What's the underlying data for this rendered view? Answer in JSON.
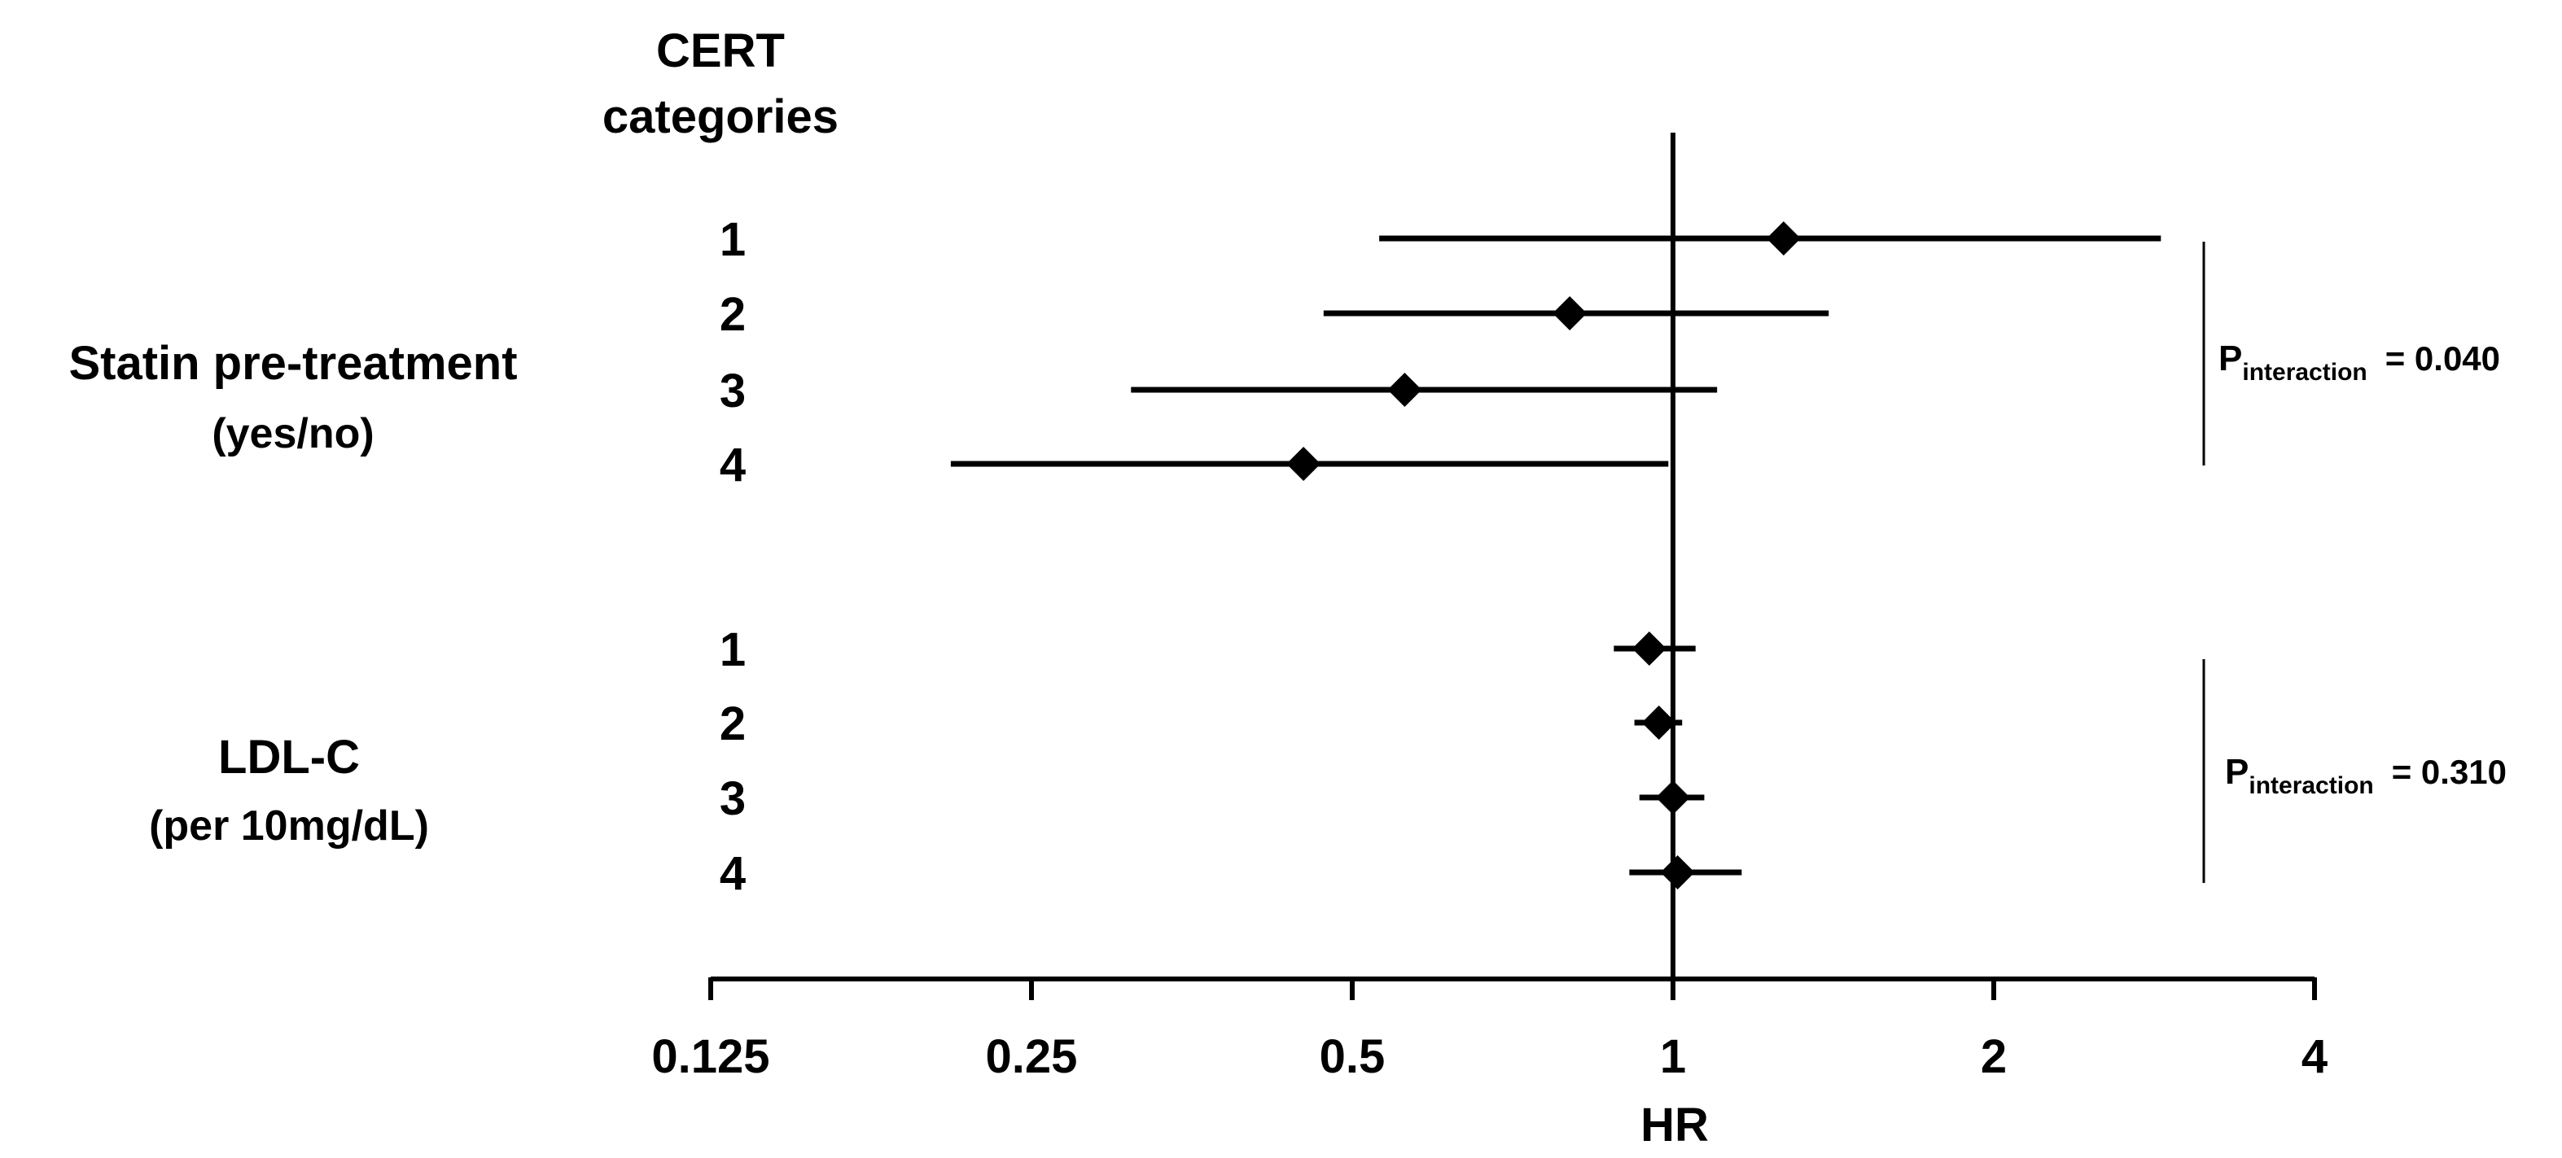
{
  "chart_data": {
    "type": "forest",
    "column_header": [
      "CERT",
      "categories"
    ],
    "xlabel": "HR",
    "x_scale": "log2",
    "xlim": [
      0.125,
      4
    ],
    "x_ticks": [
      0.125,
      0.25,
      0.5,
      1,
      2,
      4
    ],
    "x_tick_labels": [
      "0.125",
      "0.25",
      "0.5",
      "1",
      "2",
      "4"
    ],
    "reference_line": 1,
    "groups": [
      {
        "label": [
          "Statin pre-treatment",
          "(yes/no)"
        ],
        "p_interaction": {
          "prefix": "P",
          "subscript": "interaction",
          "value": "= 0.040"
        },
        "rows": [
          {
            "category": "1",
            "hr": 1.27,
            "lo": 0.53,
            "hi": 2.87
          },
          {
            "category": "2",
            "hr": 0.8,
            "lo": 0.47,
            "hi": 1.4
          },
          {
            "category": "3",
            "hr": 0.56,
            "lo": 0.31,
            "hi": 1.1
          },
          {
            "category": "4",
            "hr": 0.45,
            "lo": 0.21,
            "hi": 0.99
          }
        ]
      },
      {
        "label": [
          "LDL-C",
          "(per 10mg/dL)"
        ],
        "p_interaction": {
          "prefix": "P",
          "subscript": "interaction",
          "value": "= 0.310"
        },
        "rows": [
          {
            "category": "1",
            "hr": 0.95,
            "lo": 0.88,
            "hi": 1.05
          },
          {
            "category": "2",
            "hr": 0.97,
            "lo": 0.92,
            "hi": 1.02
          },
          {
            "category": "3",
            "hr": 1.0,
            "lo": 0.93,
            "hi": 1.07
          },
          {
            "category": "4",
            "hr": 1.01,
            "lo": 0.91,
            "hi": 1.16
          }
        ]
      }
    ]
  }
}
